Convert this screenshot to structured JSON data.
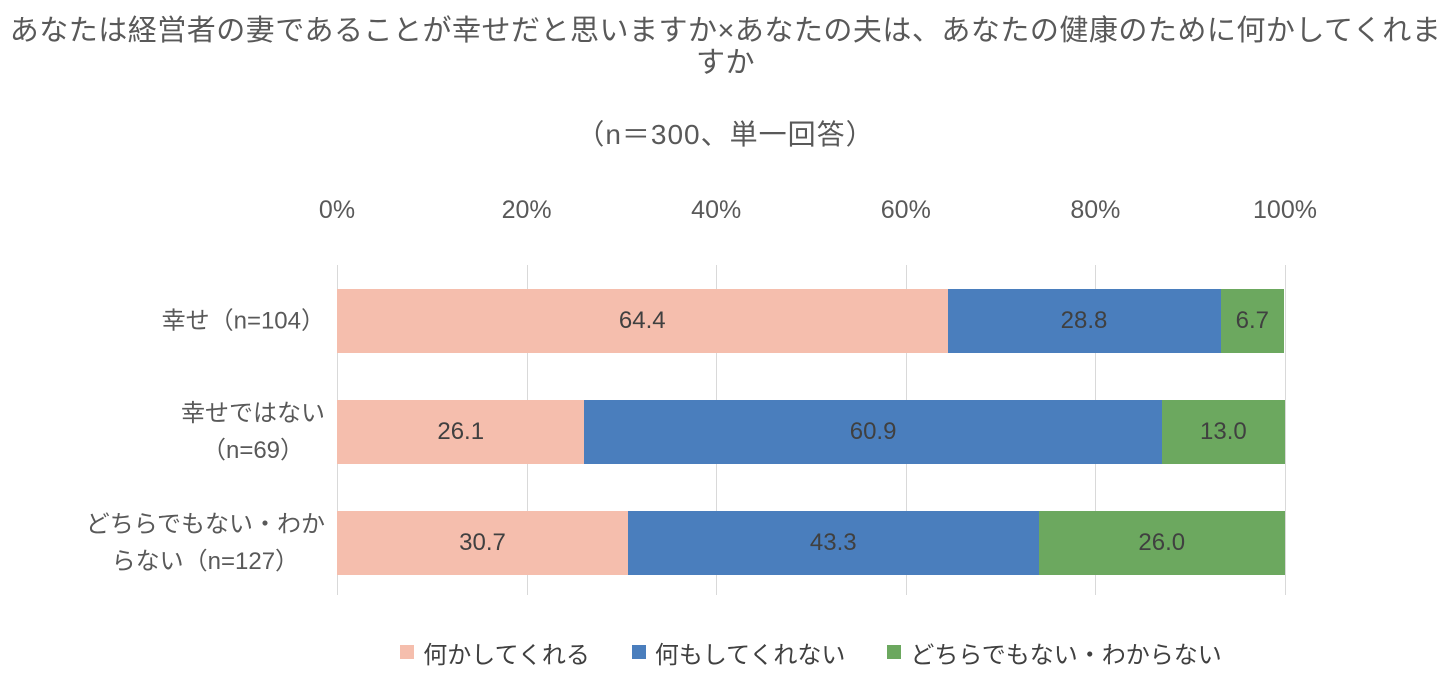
{
  "title": {
    "line1": "あなたは経営者の妻であることが幸せだと思いますか×あなたの夫は、あなたの健康のために何かしてくれますか",
    "line2": "（n＝300、単一回答）"
  },
  "colors": {
    "series_pink": "#F5BEAD",
    "series_blue": "#4A7EBD",
    "series_green": "#6CA85F",
    "gridline": "#D9D9D9",
    "axis_text": "#595959",
    "value_text": "#404040"
  },
  "chart_data": {
    "type": "bar",
    "orientation": "horizontal",
    "stacked": true,
    "title": "あなたは経営者の妻であることが幸せだと思いますか×あなたの夫は、あなたの健康のために何かしてくれますか",
    "subtitle": "（n＝300、単一回答）",
    "categories": [
      "幸せ（n=104）",
      "幸せではない\n（n=69）",
      "どちらでもない・わか\nらない（n=127）"
    ],
    "x_tick_labels": [
      "0%",
      "20%",
      "40%",
      "60%",
      "80%",
      "100%"
    ],
    "x_tick_values": [
      0,
      20,
      40,
      60,
      80,
      100
    ],
    "xlim": [
      0,
      100
    ],
    "grid": true,
    "legend_position": "bottom",
    "series": [
      {
        "name": "何かしてくれる",
        "color": "#F5BEAD",
        "values": [
          64.4,
          26.1,
          30.7
        ]
      },
      {
        "name": "何もしてくれない",
        "color": "#4A7EBD",
        "values": [
          28.8,
          60.9,
          43.3
        ]
      },
      {
        "name": "どちらでもない・わからない",
        "color": "#6CA85F",
        "values": [
          6.7,
          13.0,
          26.0
        ]
      }
    ],
    "value_label_format": "one_decimal"
  }
}
